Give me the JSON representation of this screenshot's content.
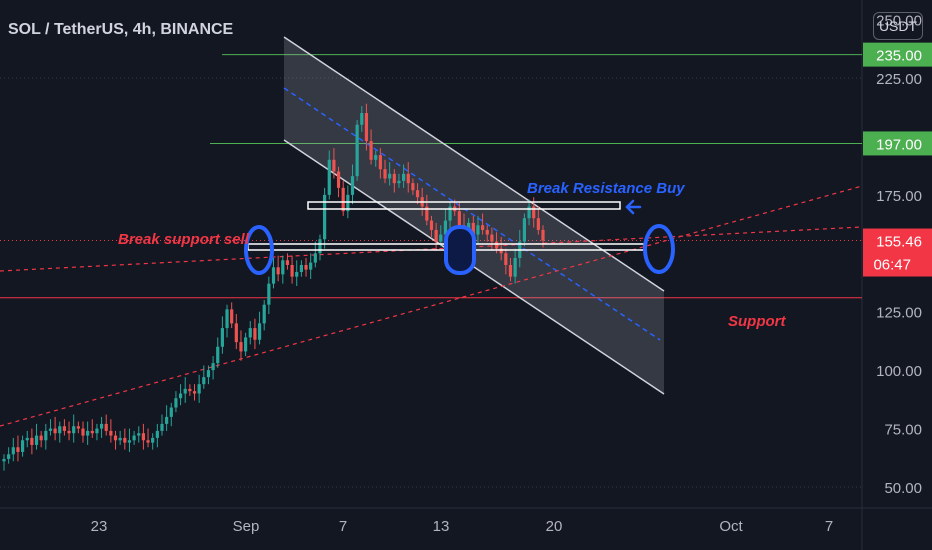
{
  "header": {
    "title": "SOL / TetherUS, 4h, BINANCE",
    "currency_button": "USDT"
  },
  "colors": {
    "background": "#131722",
    "bull": "#26a69a",
    "bear": "#ef5350",
    "level_green": "#4caf50",
    "level_red": "#f23645",
    "channel": "#d1d4dc",
    "annotation_blue": "#2962ff",
    "annotation_red": "#f23645",
    "axis_text": "#b2b5be"
  },
  "chart_data": {
    "type": "candlestick",
    "symbol": "SOL / TetherUS",
    "timeframe": "4h",
    "exchange": "BINANCE",
    "y_axis": {
      "ticks": [
        "250.00",
        "225.00",
        "175.00",
        "125.00",
        "100.00",
        "75.00",
        "50.00"
      ],
      "range": [
        45,
        258
      ]
    },
    "x_axis": {
      "ticks": [
        "23",
        "Sep",
        "7",
        "13",
        "20",
        "Oct",
        "7"
      ]
    },
    "price_labels": [
      {
        "text": "235.00",
        "price": 235,
        "color": "#4caf50"
      },
      {
        "text": "197.00",
        "price": 197,
        "color": "#4caf50"
      },
      {
        "text": "155.46",
        "price": 155.46,
        "color": "#f23645",
        "countdown": "06:47"
      }
    ],
    "horizontal_levels": [
      {
        "price": 235,
        "color": "#4caf50"
      },
      {
        "price": 197,
        "color": "#4caf50"
      },
      {
        "price": 131,
        "color": "#f23645"
      }
    ],
    "candles_close": [
      62,
      64,
      67,
      65,
      70,
      71,
      68,
      72,
      70,
      74,
      75,
      73,
      76,
      74,
      73,
      76,
      75,
      72,
      74,
      73,
      75,
      77,
      74,
      72,
      70,
      71,
      69,
      70,
      72,
      73,
      70,
      69,
      71,
      74,
      77,
      80,
      84,
      88,
      90,
      92,
      91,
      90,
      94,
      97,
      100,
      103,
      110,
      118,
      126,
      120,
      112,
      108,
      114,
      118,
      113,
      120,
      128,
      137,
      144,
      141,
      147,
      145,
      140,
      142,
      145,
      143,
      146,
      150,
      156,
      175,
      190,
      185,
      178,
      168,
      175,
      183,
      205,
      210,
      198,
      190,
      192,
      186,
      182,
      184,
      180,
      181,
      184,
      180,
      177,
      174,
      170,
      164,
      160,
      155,
      158,
      164,
      170,
      168,
      162,
      160,
      163,
      158,
      162,
      160,
      158,
      155,
      152,
      150,
      145,
      140,
      148,
      155,
      165,
      170,
      165,
      160,
      155.46
    ],
    "annotations": [
      {
        "text": "Break support sell",
        "color": "#f23645"
      },
      {
        "text": "Break Resistance Buy",
        "color": "#2962ff"
      },
      {
        "text": "Support",
        "color": "#f23645"
      }
    ]
  }
}
